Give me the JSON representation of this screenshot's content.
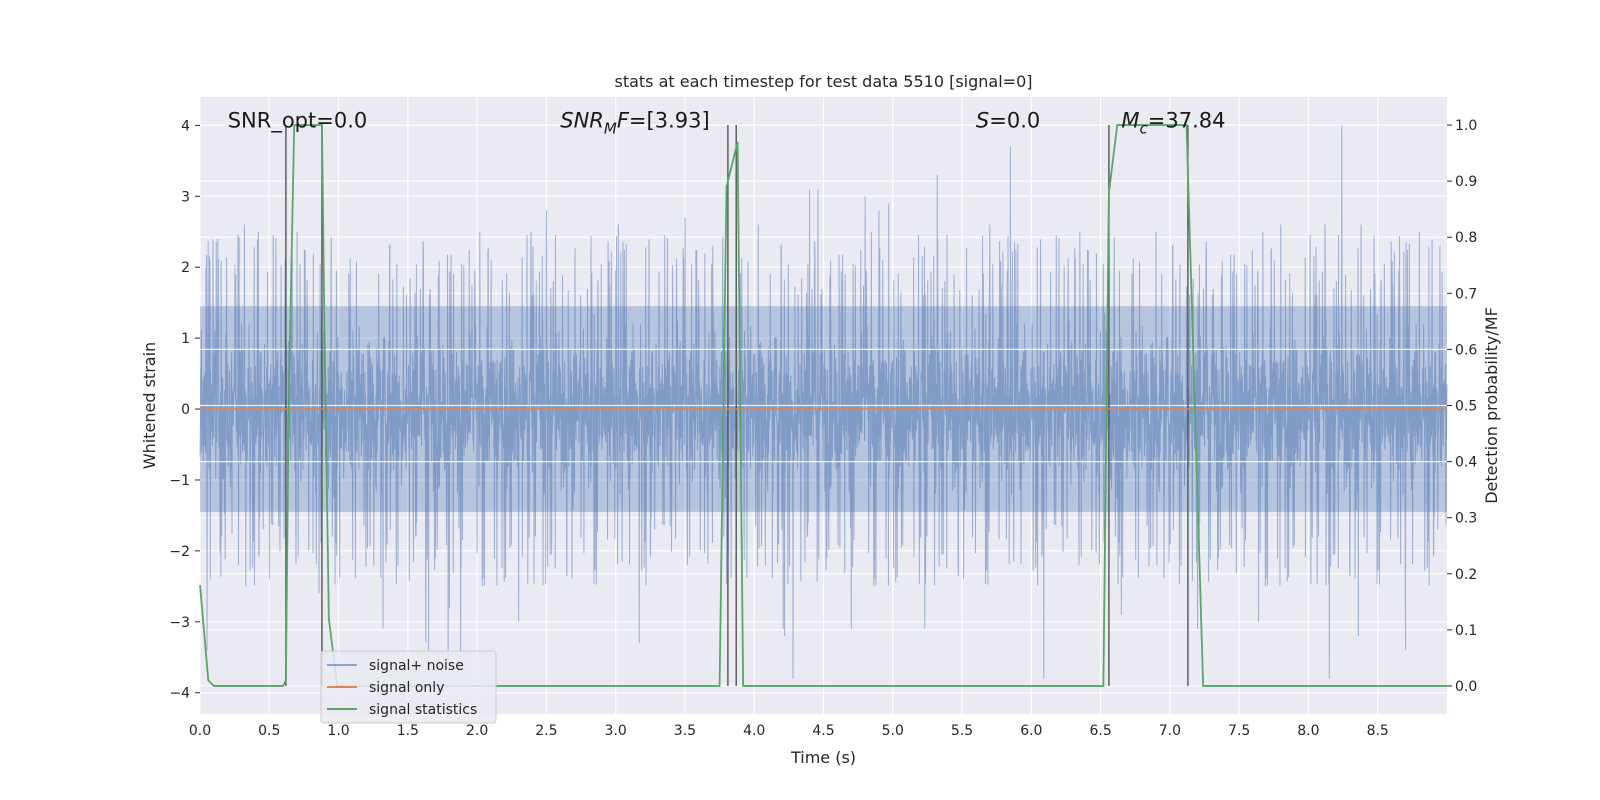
{
  "chart_data": {
    "type": "line",
    "title": "stats at each timestep for test data 5510 [signal=0]",
    "xlabel": "Time (s)",
    "ylabel_left": "Whitened strain",
    "ylabel_right": "Detection probability/MF",
    "xlim": [
      0,
      9
    ],
    "ylim_left": [
      -4.3,
      4.4
    ],
    "ylim_right": [
      -0.05,
      1.05
    ],
    "x_ticks": [
      "0.0",
      "0.5",
      "1.0",
      "1.5",
      "2.0",
      "2.5",
      "3.0",
      "3.5",
      "4.0",
      "4.5",
      "5.0",
      "5.5",
      "6.0",
      "6.5",
      "7.0",
      "7.5",
      "8.0",
      "8.5"
    ],
    "x_tick_values": [
      0,
      0.5,
      1,
      1.5,
      2,
      2.5,
      3,
      3.5,
      4,
      4.5,
      5,
      5.5,
      6,
      6.5,
      7,
      7.5,
      8,
      8.5
    ],
    "y_left_ticks": [
      "−4",
      "−3",
      "−2",
      "−1",
      "0",
      "1",
      "2",
      "3",
      "4"
    ],
    "y_left_tick_values": [
      -4,
      -3,
      -2,
      -1,
      0,
      1,
      2,
      3,
      4
    ],
    "y_right_ticks": [
      "0.0",
      "0.1",
      "0.2",
      "0.3",
      "0.4",
      "0.5",
      "0.6",
      "0.7",
      "0.8",
      "0.9",
      "1.0"
    ],
    "y_right_tick_values": [
      0,
      0.1,
      0.2,
      0.3,
      0.4,
      0.5,
      0.6,
      0.7,
      0.8,
      0.9,
      1.0
    ],
    "grid": true,
    "legend_position": "lower-left",
    "annotations": [
      {
        "text": "SNR_opt=0.0",
        "x": 0.2,
        "y": 4.0
      },
      {
        "text": "SNR_MF=[3.93]",
        "x": 2.6,
        "y": 4.0
      },
      {
        "text": "S=0.0",
        "x": 5.6,
        "y": 4.0
      },
      {
        "text": "M_c=37.84",
        "x": 6.65,
        "y": 4.0
      }
    ],
    "series": [
      {
        "name": "signal+ noise",
        "axis": "left",
        "color": "#4c72b0",
        "style": "noise",
        "n_samples": 4600,
        "core_amplitude": 1.45,
        "spikes": [
          {
            "x": 0.05,
            "y": -3.4
          },
          {
            "x": 0.13,
            "y": 2.4
          },
          {
            "x": 0.32,
            "y": 2.6
          },
          {
            "x": 0.33,
            "y": -2.5
          },
          {
            "x": 0.42,
            "y": 2.5
          },
          {
            "x": 0.5,
            "y": -2.4
          },
          {
            "x": 0.7,
            "y": 2.5
          },
          {
            "x": 0.86,
            "y": -2.6
          },
          {
            "x": 1.32,
            "y": -3.1
          },
          {
            "x": 1.63,
            "y": -3.3
          },
          {
            "x": 1.65,
            "y": -3.4
          },
          {
            "x": 1.79,
            "y": -3.6
          },
          {
            "x": 1.8,
            "y": -2.8
          },
          {
            "x": 1.88,
            "y": -3.5
          },
          {
            "x": 2.3,
            "y": -3.0
          },
          {
            "x": 2.39,
            "y": 2.5
          },
          {
            "x": 2.5,
            "y": 2.8
          },
          {
            "x": 3.02,
            "y": 2.6
          },
          {
            "x": 3.17,
            "y": -3.3
          },
          {
            "x": 3.5,
            "y": 2.7
          },
          {
            "x": 3.7,
            "y": 2.3
          },
          {
            "x": 4.03,
            "y": 2.6
          },
          {
            "x": 4.21,
            "y": -3.1
          },
          {
            "x": 4.22,
            "y": -3.2
          },
          {
            "x": 4.28,
            "y": -3.8
          },
          {
            "x": 4.4,
            "y": 3.1
          },
          {
            "x": 4.46,
            "y": 3.1
          },
          {
            "x": 4.7,
            "y": -3.1
          },
          {
            "x": 4.8,
            "y": 3.0
          },
          {
            "x": 4.9,
            "y": 2.8
          },
          {
            "x": 4.97,
            "y": 2.9
          },
          {
            "x": 5.23,
            "y": -3.1
          },
          {
            "x": 5.32,
            "y": 3.3
          },
          {
            "x": 5.7,
            "y": 2.6
          },
          {
            "x": 5.85,
            "y": 3.7
          },
          {
            "x": 6.09,
            "y": -3.8
          },
          {
            "x": 6.35,
            "y": 2.5
          },
          {
            "x": 6.65,
            "y": -2.9
          },
          {
            "x": 6.9,
            "y": 2.5
          },
          {
            "x": 7.2,
            "y": -3.1
          },
          {
            "x": 7.64,
            "y": -3.0
          },
          {
            "x": 7.8,
            "y": 2.6
          },
          {
            "x": 8.12,
            "y": 2.6
          },
          {
            "x": 8.15,
            "y": -3.8
          },
          {
            "x": 8.24,
            "y": 4.0
          },
          {
            "x": 8.36,
            "y": -3.2
          },
          {
            "x": 8.38,
            "y": 2.6
          },
          {
            "x": 8.7,
            "y": -3.4
          },
          {
            "x": 8.8,
            "y": 2.5
          },
          {
            "x": 8.95,
            "y": 2.3
          }
        ]
      },
      {
        "name": "signal only",
        "axis": "left",
        "color": "#dd8452",
        "x": [
          0,
          9
        ],
        "y": [
          0,
          0
        ]
      },
      {
        "name": "signal statistics",
        "axis": "right",
        "color": "#55a868",
        "x": [
          0,
          0.06,
          0.1,
          0.6,
          0.62,
          0.64,
          0.68,
          0.88,
          0.9,
          0.93,
          0.99,
          3.75,
          3.8,
          3.88,
          3.92,
          3.96,
          6.52,
          6.56,
          6.62,
          7.12,
          7.18,
          7.24,
          9
        ],
        "y": [
          0.18,
          0.01,
          0.0,
          0.0,
          0.01,
          0.5,
          1.0,
          1.0,
          0.6,
          0.12,
          0.0,
          0.0,
          0.89,
          0.97,
          0.0,
          0.0,
          0.0,
          0.88,
          1.0,
          1.0,
          0.5,
          0.0,
          0.0
        ]
      }
    ],
    "vlines": [
      0.62,
      0.88,
      3.81,
      3.87,
      6.56,
      7.13
    ]
  }
}
